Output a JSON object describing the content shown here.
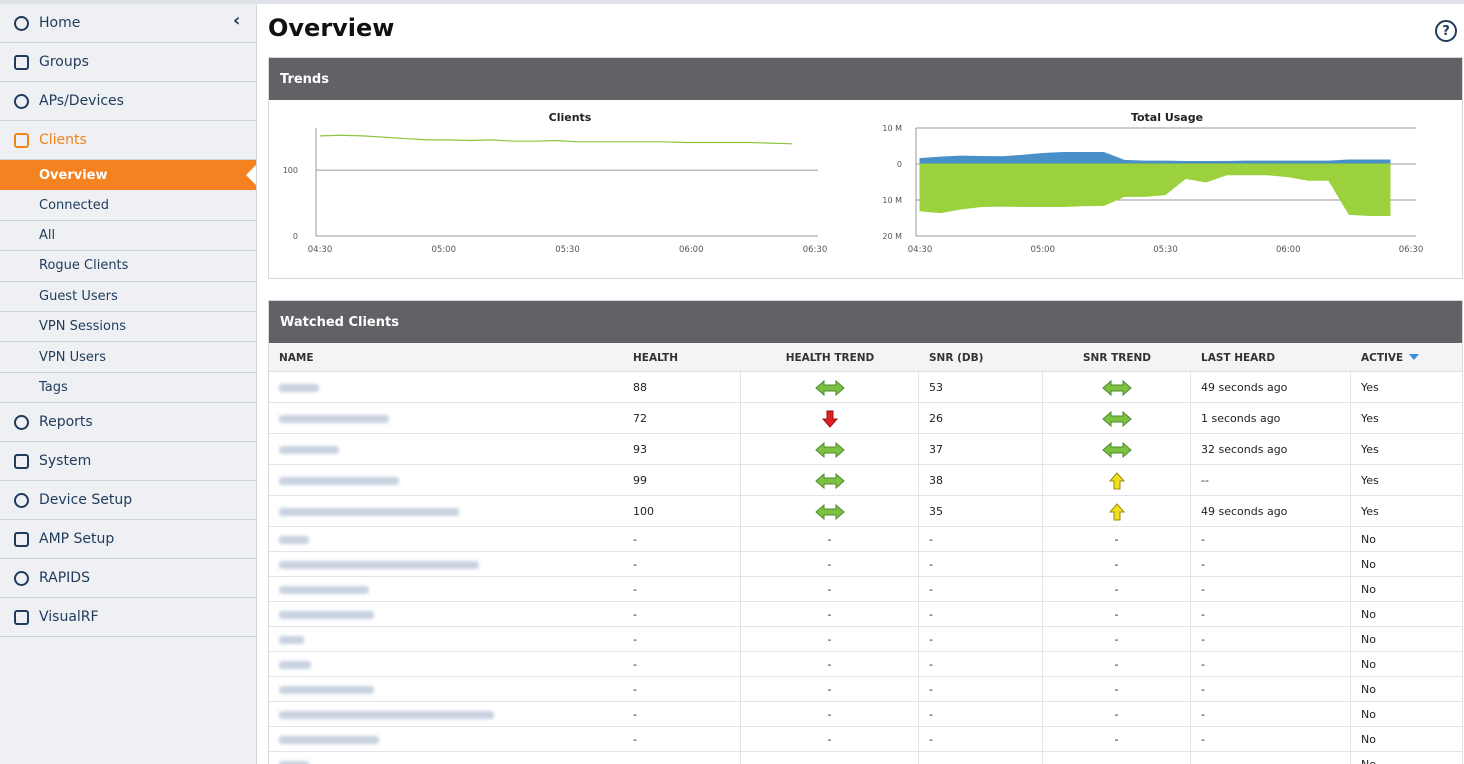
{
  "nav": {
    "items": [
      {
        "label": "Home"
      },
      {
        "label": "Groups"
      },
      {
        "label": "APs/Devices"
      },
      {
        "label": "Clients",
        "children": [
          "Overview",
          "Connected",
          "All",
          "Rogue Clients",
          "Guest Users",
          "VPN Sessions",
          "VPN Users",
          "Tags"
        ]
      },
      {
        "label": "Reports"
      },
      {
        "label": "System"
      },
      {
        "label": "Device Setup"
      },
      {
        "label": "AMP Setup"
      },
      {
        "label": "RAPIDS"
      },
      {
        "label": "VisualRF"
      }
    ]
  },
  "page": {
    "title": "Overview",
    "help": "?"
  },
  "trends": {
    "title": "Trends",
    "charts": [
      {
        "type": "line",
        "title": "Clients",
        "categories": [
          "04:30",
          "05:00",
          "05:30",
          "06:00",
          "06:30"
        ],
        "values": [
          152,
          153,
          152,
          150,
          148,
          146,
          146,
          145,
          146,
          144,
          144,
          145,
          143,
          143,
          143,
          143,
          143,
          142,
          142,
          142,
          142,
          141,
          140
        ],
        "color": "#8cc63f",
        "ylim": [
          0,
          164
        ],
        "yticks": [
          0,
          100
        ]
      },
      {
        "type": "area",
        "title": "Total Usage",
        "categories": [
          "04:30",
          "05:00",
          "05:30",
          "06:00",
          "06:30"
        ],
        "series": [
          {
            "color": "#4a90c8",
            "values": [
              1.5,
              1.9,
              2.2,
              2.1,
              2,
              2.4,
              2.9,
              3.2,
              3.2,
              3.2,
              1,
              0.8,
              0.8,
              0.7,
              0.7,
              0.7,
              0.8,
              0.8,
              0.8,
              0.8,
              0.8,
              1.1,
              1.1,
              1.1
            ]
          },
          {
            "color": "#9bd13c",
            "values": [
              -13,
              -13.5,
              -12.5,
              -11.8,
              -11.7,
              -11.8,
              -11.8,
              -11.8,
              -11.6,
              -11.5,
              -9,
              -9,
              -8.5,
              -4,
              -5,
              -3,
              -3,
              -3,
              -3.5,
              -4.5,
              -4.5,
              -14,
              -14.3,
              -14.3
            ]
          }
        ],
        "ylim": [
          -20,
          10
        ],
        "yticks": [
          {
            "value": 10,
            "label": "10 M"
          },
          0,
          {
            "value": -10,
            "label": "10 M"
          },
          {
            "value": -20,
            "label": "20 M"
          }
        ]
      }
    ]
  },
  "watched": {
    "title": "Watched Clients",
    "columns": [
      "NAME",
      "HEALTH",
      "HEALTH TREND",
      "SNR (DB)",
      "SNR TREND",
      "LAST HEARD",
      "ACTIVE"
    ],
    "rows": [
      {
        "health": 88,
        "snr": 53,
        "last_heard": "49 seconds ago",
        "active": "Yes"
      },
      {
        "health": 72,
        "snr": 26,
        "last_heard": "1 seconds ago",
        "active": "Yes"
      },
      {
        "health": 93,
        "snr": 37,
        "last_heard": "32 seconds ago",
        "active": "Yes"
      },
      {
        "health": 99,
        "snr": 38,
        "last_heard": "--",
        "active": "Yes"
      },
      {
        "health": 100,
        "snr": 35,
        "last_heard": "49 seconds ago",
        "active": "Yes"
      },
      {
        "health": "-",
        "health_trend": "-",
        "snr": "-",
        "snr_trend": "-",
        "last_heard": "-",
        "active": "No"
      },
      {
        "health": "-",
        "health_trend": "-",
        "snr": "-",
        "snr_trend": "-",
        "last_heard": "-",
        "active": "No"
      },
      {
        "health": "-",
        "health_trend": "-",
        "snr": "-",
        "snr_trend": "-",
        "last_heard": "-",
        "active": "No"
      },
      {
        "health": "-",
        "health_trend": "-",
        "snr": "-",
        "snr_trend": "-",
        "last_heard": "-",
        "active": "No"
      },
      {
        "health": "-",
        "health_trend": "-",
        "snr": "-",
        "snr_trend": "-",
        "last_heard": "-",
        "active": "No"
      },
      {
        "health": "-",
        "health_trend": "-",
        "snr": "-",
        "snr_trend": "-",
        "last_heard": "-",
        "active": "No"
      },
      {
        "health": "-",
        "health_trend": "-",
        "snr": "-",
        "snr_trend": "-",
        "last_heard": "-",
        "active": "No"
      },
      {
        "health": "-",
        "health_trend": "-",
        "snr": "-",
        "snr_trend": "-",
        "last_heard": "-",
        "active": "No"
      },
      {
        "health": "-",
        "health_trend": "-",
        "snr": "-",
        "snr_trend": "-",
        "last_heard": "-",
        "active": "No"
      },
      {
        "health": "-",
        "health_trend": "-",
        "snr": "-",
        "snr_trend": "-",
        "last_heard": "-",
        "active": "No"
      }
    ]
  }
}
